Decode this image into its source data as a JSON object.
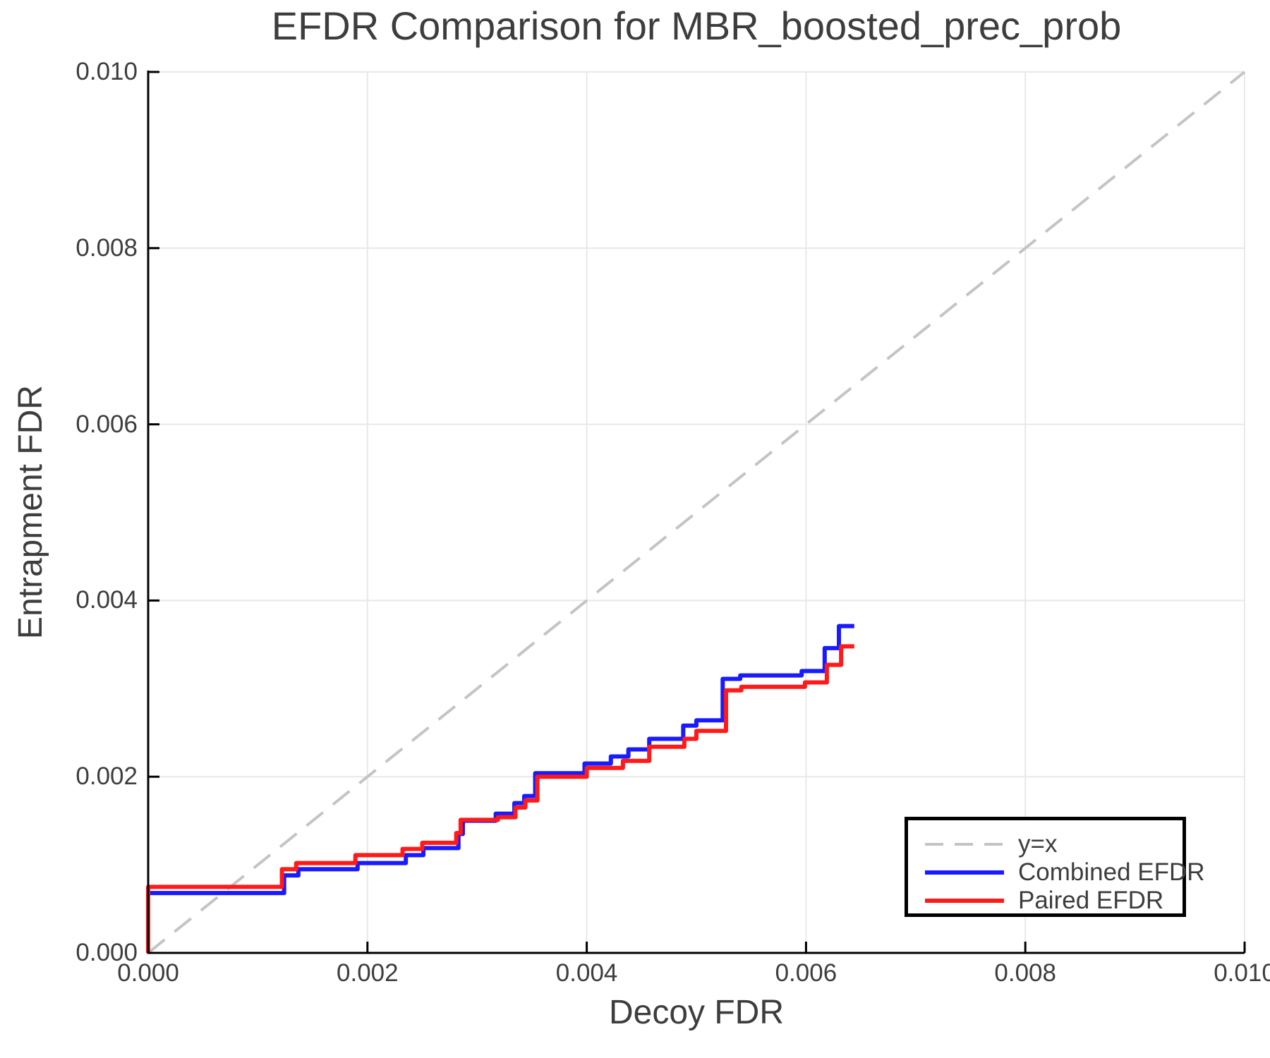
{
  "chart_data": {
    "type": "line",
    "title": "EFDR Comparison for MBR_boosted_prec_prob",
    "xlabel": "Decoy FDR",
    "ylabel": "Entrapment FDR",
    "xlim": [
      0.0,
      0.01
    ],
    "ylim": [
      0.0,
      0.01
    ],
    "xticks": {
      "values": [
        0.0,
        0.002,
        0.004,
        0.006,
        0.008,
        0.01
      ],
      "labels": [
        "0.000",
        "0.002",
        "0.004",
        "0.006",
        "0.008",
        "0.010"
      ]
    },
    "yticks": {
      "values": [
        0.0,
        0.002,
        0.004,
        0.006,
        0.008,
        0.01
      ],
      "labels": [
        "0.000",
        "0.002",
        "0.004",
        "0.006",
        "0.008",
        "0.010"
      ]
    },
    "grid": true,
    "grid_color": "#e8e8e8",
    "legend_position": "lower right",
    "reference_line": {
      "label": "y=x",
      "from": [
        0.0,
        0.0
      ],
      "to": [
        0.01,
        0.01
      ],
      "color": "#c4c4c4",
      "style": "dashed"
    },
    "series": [
      {
        "name": "Combined EFDR",
        "color": "#1a1aff",
        "step": true,
        "points": [
          [
            0.0,
            0.0
          ],
          [
            0.0,
            0.00068
          ],
          [
            0.00124,
            0.00068
          ],
          [
            0.00124,
            0.00088
          ],
          [
            0.00137,
            0.00095
          ],
          [
            0.00191,
            0.00102
          ],
          [
            0.00235,
            0.00111
          ],
          [
            0.00251,
            0.00119
          ],
          [
            0.00283,
            0.00135
          ],
          [
            0.00287,
            0.0015
          ],
          [
            0.00317,
            0.00158
          ],
          [
            0.00334,
            0.0017
          ],
          [
            0.00343,
            0.00178
          ],
          [
            0.00353,
            0.00204
          ],
          [
            0.00398,
            0.00215
          ],
          [
            0.00422,
            0.00223
          ],
          [
            0.00438,
            0.00231
          ],
          [
            0.00457,
            0.00243
          ],
          [
            0.00488,
            0.00258
          ],
          [
            0.005,
            0.00264
          ],
          [
            0.00524,
            0.00311
          ],
          [
            0.0054,
            0.00315
          ],
          [
            0.00596,
            0.0032
          ],
          [
            0.00617,
            0.00346
          ],
          [
            0.0063,
            0.00371
          ],
          [
            0.00644,
            0.00371
          ]
        ]
      },
      {
        "name": "Paired EFDR",
        "color": "#ff1a1a",
        "step": true,
        "points": [
          [
            0.0,
            0.0
          ],
          [
            0.0,
            0.00075
          ],
          [
            0.00122,
            0.00075
          ],
          [
            0.00122,
            0.00095
          ],
          [
            0.00135,
            0.00102
          ],
          [
            0.00189,
            0.00111
          ],
          [
            0.00232,
            0.00118
          ],
          [
            0.0025,
            0.00125
          ],
          [
            0.00281,
            0.00136
          ],
          [
            0.00285,
            0.00151
          ],
          [
            0.00319,
            0.00154
          ],
          [
            0.00335,
            0.00165
          ],
          [
            0.00344,
            0.00173
          ],
          [
            0.00355,
            0.002
          ],
          [
            0.004,
            0.0021
          ],
          [
            0.00433,
            0.00218
          ],
          [
            0.00457,
            0.00234
          ],
          [
            0.00489,
            0.00243
          ],
          [
            0.005,
            0.00252
          ],
          [
            0.00527,
            0.00298
          ],
          [
            0.00541,
            0.00302
          ],
          [
            0.00599,
            0.00307
          ],
          [
            0.00619,
            0.00327
          ],
          [
            0.00632,
            0.00348
          ],
          [
            0.00644,
            0.00348
          ]
        ]
      }
    ]
  },
  "legend": {
    "entries": [
      {
        "label": "y=x"
      },
      {
        "label": "Combined EFDR"
      },
      {
        "label": "Paired EFDR"
      }
    ]
  },
  "colors": {
    "text": "#3d3d3d",
    "spine": "#000000",
    "grid": "#e8e8e8",
    "reference": "#c4c4c4",
    "combined": "#1a1aff",
    "paired": "#ff1a1a"
  }
}
